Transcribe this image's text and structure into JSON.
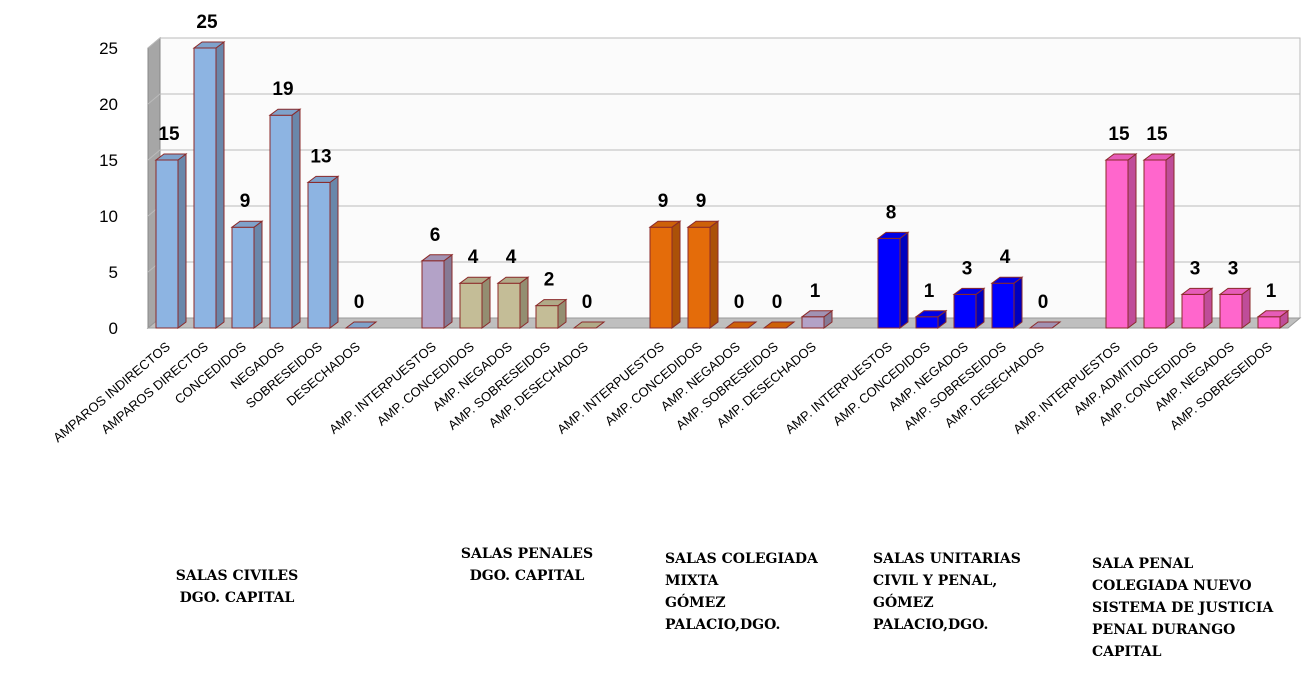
{
  "chart_data": {
    "type": "bar3d",
    "categories": [
      "AMPAROS INDIRECTOS",
      "AMPAROS DIRECTOS",
      "CONCEDIDOS",
      "NEGADOS",
      "SOBRESEIDOS",
      "DESECHADOS",
      null,
      "AMP. INTERPUESTOS",
      "AMP. CONCEDIDOS",
      "AMP. NEGADOS",
      "AMP. SOBRESEIDOS",
      "AMP. DESECHADOS",
      null,
      "AMP. INTERPUESTOS",
      "AMP. CONCEDIDOS",
      "AMP. NEGADOS",
      "AMP. SOBRESEIDOS",
      "AMP. DESECHADOS",
      null,
      "AMP. INTERPUESTOS",
      "AMP. CONCEDIDOS",
      "AMP. NEGADOS",
      "AMP. SOBRESEIDOS",
      "AMP. DESECHADOS",
      null,
      "AMP. INTERPUESTOS",
      "AMP. ADMITIDOS",
      "AMP. CONCEDIDOS",
      "AMP. NEGADOS",
      "AMP. SOBRESEIDOS"
    ],
    "values": [
      15,
      25,
      9,
      19,
      13,
      0,
      null,
      6,
      4,
      4,
      2,
      0,
      null,
      9,
      9,
      0,
      0,
      1,
      null,
      8,
      1,
      3,
      4,
      0,
      null,
      15,
      15,
      3,
      3,
      1
    ],
    "colors": [
      "#8db4e2",
      "#8db4e2",
      "#8db4e2",
      "#8db4e2",
      "#8db4e2",
      "#8db4e2",
      null,
      "#b3a2c7",
      "#c4bd97",
      "#c4bd97",
      "#c4bd97",
      "#c4bd97",
      null,
      "#e46c0a",
      "#e46c0a",
      "#e46c0a",
      "#e46c0a",
      "#b3a2c7",
      null,
      "#0000ff",
      "#0000ff",
      "#0000ff",
      "#0000ff",
      "#b3a2c7",
      null,
      "#ff66cc",
      "#ff66cc",
      "#ff66cc",
      "#ff66cc",
      "#ff66cc"
    ],
    "groups": [
      [
        "SALAS CIVILES",
        "DGO. CAPITAL"
      ],
      [
        "SALAS PENALES",
        "DGO. CAPITAL"
      ],
      [
        "SALAS COLEGIADA",
        "MIXTA",
        "GÓMEZ",
        "PALACIO,DGO."
      ],
      [
        "SALAS UNITARIAS",
        "CIVIL Y PENAL,",
        "GÓMEZ",
        "PALACIO,DGO."
      ],
      [
        "SALA PENAL",
        "COLEGIADA NUEVO",
        "SISTEMA DE JUSTICIA",
        "PENAL DURANGO",
        "CAPITAL"
      ]
    ],
    "ylim": [
      0,
      25
    ],
    "yticks": [
      0,
      5,
      10,
      15,
      20,
      25
    ],
    "grid": true
  }
}
